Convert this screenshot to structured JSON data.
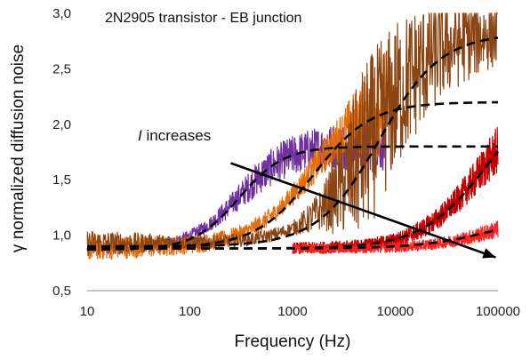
{
  "chart_data": {
    "type": "line",
    "title": "2N2905 transistor - EB junction",
    "xlabel": "Frequency (Hz)",
    "ylabel": "γ normalized diffusion noise",
    "x_scale": "log",
    "xlim": [
      10,
      100000
    ],
    "ylim": [
      0.5,
      3.0
    ],
    "x_ticks": [
      "10",
      "100",
      "1000",
      "10000",
      "100000"
    ],
    "y_ticks": [
      "0,5",
      "1,0",
      "1,5",
      "2,0",
      "2,5",
      "3,0"
    ],
    "grid": false,
    "legend": "none",
    "annotation": {
      "text_italic": "I",
      "text_rest": " increases",
      "arrow_from": [
        250,
        1.65
      ],
      "arrow_to": [
        95000,
        0.8
      ]
    },
    "series": [
      {
        "color": "#7030a0",
        "x_range": [
          10,
          8000
        ],
        "noise_curve": {
          "low": 0.87,
          "high": 1.82,
          "center_hz": 300,
          "width_decades": 0.25
        },
        "noise_amplitude": [
          [
            10,
            0.04
          ],
          [
            150,
            0.06
          ],
          [
            500,
            0.16
          ],
          [
            2000,
            0.2
          ],
          [
            8000,
            0.24
          ]
        ]
      },
      {
        "color": "#e36c09",
        "x_range": [
          10,
          8000
        ],
        "noise_curve": {
          "low": 0.89,
          "high": 2.3,
          "center_hz": 1600,
          "width_decades": 0.3
        },
        "noise_amplitude": [
          [
            10,
            0.12
          ],
          [
            100,
            0.08
          ],
          [
            800,
            0.08
          ],
          [
            2500,
            0.18
          ],
          [
            5000,
            0.35
          ],
          [
            8000,
            0.5
          ]
        ]
      },
      {
        "color": "#8b4513",
        "x_range": [
          10,
          100000
        ],
        "noise_curve": {
          "low": 0.93,
          "high": 2.85,
          "center_hz": 6000,
          "width_decades": 0.3
        },
        "noise_amplitude": [
          [
            10,
            0.12
          ],
          [
            100,
            0.06
          ],
          [
            1000,
            0.06
          ],
          [
            2000,
            0.2
          ],
          [
            5000,
            0.8
          ],
          [
            10000,
            0.7
          ],
          [
            30000,
            0.45
          ],
          [
            100000,
            0.3
          ]
        ]
      },
      {
        "color": "#c00000",
        "x_range": [
          1000,
          100000
        ],
        "noise_curve": {
          "low": 0.88,
          "high": 2.3,
          "center_hz": 70000,
          "width_decades": 0.3
        },
        "noise_amplitude": [
          [
            1000,
            0.05
          ],
          [
            10000,
            0.06
          ],
          [
            40000,
            0.12
          ],
          [
            100000,
            0.22
          ]
        ]
      },
      {
        "color": "#ff2020",
        "x_range": [
          1000,
          100000
        ],
        "noise_curve": {
          "low": 0.88,
          "high": 1.2,
          "center_hz": 90000,
          "width_decades": 0.3
        },
        "noise_amplitude": [
          [
            1000,
            0.04
          ],
          [
            30000,
            0.05
          ],
          [
            100000,
            0.08
          ]
        ]
      }
    ],
    "fit_curves": [
      {
        "low": 0.87,
        "high": 1.8,
        "center_hz": 300,
        "width_decades": 0.22
      },
      {
        "low": 0.89,
        "high": 2.2,
        "center_hz": 1600,
        "width_decades": 0.28
      },
      {
        "low": 0.9,
        "high": 2.82,
        "center_hz": 7000,
        "width_decades": 0.3
      },
      {
        "low": 0.88,
        "high": 2.4,
        "center_hz": 80000,
        "width_decades": 0.32
      },
      {
        "low": 0.88,
        "high": 1.2,
        "center_hz": 90000,
        "width_decades": 0.35
      }
    ]
  }
}
